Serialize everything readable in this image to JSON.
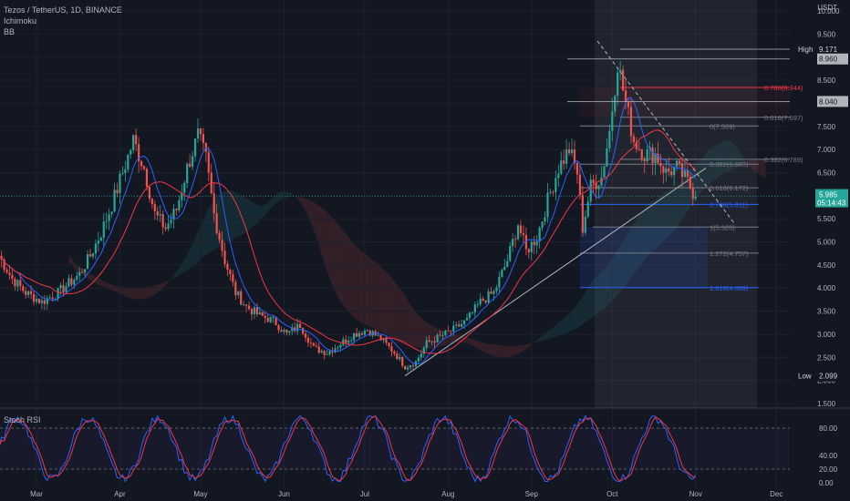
{
  "header": {
    "symbol_line": "Tezos / TetherUS, 1D, BINANCE",
    "indicator_1": "Ichimoku",
    "indicator_2": "BB",
    "rsi_label": "Stoch RSI"
  },
  "colors": {
    "background": "#131722",
    "up": "#26a69a",
    "down": "#ef5350",
    "grid": "#1e222d",
    "fib_blue": "#2962ff",
    "fib_red": "#f23645",
    "bb_blue": "#2962ff",
    "bb_red": "#f23645"
  },
  "chart_data": [
    {
      "type": "candlestick",
      "title": "Tezos / TetherUS, 1D, BINANCE",
      "unit": "USDT",
      "ylim": [
        1.5,
        10.0
      ],
      "y_ticks": [
        "1.500",
        "2.000",
        "2.500",
        "3.000",
        "3.500",
        "4.000",
        "4.500",
        "5.000",
        "5.500",
        "6.000",
        "6.500",
        "7.000",
        "7.500",
        "8.000",
        "8.500",
        "9.000",
        "9.500",
        "10.000"
      ],
      "x_ticks": [
        {
          "label": "Mar",
          "day": 0
        },
        {
          "label": "Apr",
          "day": 31
        },
        {
          "label": "May",
          "day": 61
        },
        {
          "label": "Jun",
          "day": 92
        },
        {
          "label": "Jul",
          "day": 122
        },
        {
          "label": "Aug",
          "day": 153
        },
        {
          "label": "Sep",
          "day": 184
        },
        {
          "label": "Oct",
          "day": 214
        },
        {
          "label": "Nov",
          "day": 245
        },
        {
          "label": "Dec",
          "day": 275
        }
      ],
      "current_price": {
        "value": 5.985,
        "label": "5.985",
        "countdown": "05:14:43"
      },
      "high": {
        "label": "High",
        "value": 9.171,
        "text": "9.171"
      },
      "low": {
        "label": "Low",
        "value": 2.099,
        "text": "2.099"
      },
      "price_badges": [
        {
          "value": 8.96,
          "text": "8.960"
        },
        {
          "value": 8.04,
          "text": "8.040"
        }
      ],
      "key_points": [
        {
          "day": -14,
          "price": 4.7
        },
        {
          "day": -9,
          "price": 4.2
        },
        {
          "day": -4,
          "price": 3.9
        },
        {
          "day": 2,
          "price": 3.7
        },
        {
          "day": 8,
          "price": 3.9
        },
        {
          "day": 12,
          "price": 4.1
        },
        {
          "day": 16,
          "price": 4.3
        },
        {
          "day": 20,
          "price": 4.7
        },
        {
          "day": 24,
          "price": 5.2
        },
        {
          "day": 28,
          "price": 5.8
        },
        {
          "day": 32,
          "price": 6.5
        },
        {
          "day": 36,
          "price": 7.2
        },
        {
          "day": 40,
          "price": 6.6
        },
        {
          "day": 44,
          "price": 5.6
        },
        {
          "day": 48,
          "price": 5.3
        },
        {
          "day": 52,
          "price": 5.7
        },
        {
          "day": 56,
          "price": 6.6
        },
        {
          "day": 60,
          "price": 7.3
        },
        {
          "day": 63,
          "price": 6.8
        },
        {
          "day": 66,
          "price": 5.6
        },
        {
          "day": 70,
          "price": 4.6
        },
        {
          "day": 74,
          "price": 3.9
        },
        {
          "day": 78,
          "price": 3.6
        },
        {
          "day": 83,
          "price": 3.4
        },
        {
          "day": 88,
          "price": 3.3
        },
        {
          "day": 93,
          "price": 3.0
        },
        {
          "day": 98,
          "price": 3.2
        },
        {
          "day": 103,
          "price": 2.7
        },
        {
          "day": 108,
          "price": 2.6
        },
        {
          "day": 113,
          "price": 2.8
        },
        {
          "day": 118,
          "price": 3.0
        },
        {
          "day": 123,
          "price": 3.1
        },
        {
          "day": 128,
          "price": 2.9
        },
        {
          "day": 133,
          "price": 2.6
        },
        {
          "day": 137,
          "price": 2.3
        },
        {
          "day": 141,
          "price": 2.4
        },
        {
          "day": 145,
          "price": 2.8
        },
        {
          "day": 150,
          "price": 2.95
        },
        {
          "day": 155,
          "price": 3.1
        },
        {
          "day": 160,
          "price": 3.3
        },
        {
          "day": 165,
          "price": 3.7
        },
        {
          "day": 170,
          "price": 3.9
        },
        {
          "day": 175,
          "price": 4.6
        },
        {
          "day": 179,
          "price": 5.4
        },
        {
          "day": 182,
          "price": 4.8
        },
        {
          "day": 186,
          "price": 5.1
        },
        {
          "day": 190,
          "price": 5.9
        },
        {
          "day": 194,
          "price": 6.6
        },
        {
          "day": 198,
          "price": 7.0
        },
        {
          "day": 201,
          "price": 6.5
        },
        {
          "day": 203,
          "price": 5.3
        },
        {
          "day": 206,
          "price": 6.2
        },
        {
          "day": 210,
          "price": 6.4
        },
        {
          "day": 213,
          "price": 7.4
        },
        {
          "day": 216,
          "price": 8.9
        },
        {
          "day": 219,
          "price": 8.0
        },
        {
          "day": 222,
          "price": 7.2
        },
        {
          "day": 226,
          "price": 6.9
        },
        {
          "day": 230,
          "price": 6.9
        },
        {
          "day": 234,
          "price": 6.5
        },
        {
          "day": 238,
          "price": 6.6
        },
        {
          "day": 242,
          "price": 6.3
        },
        {
          "day": 245,
          "price": 5.985
        }
      ],
      "fibonacci": [
        {
          "label": "0(7.509)",
          "value": 7.509,
          "color": "#787b86"
        },
        {
          "label": "0.382(6.683)",
          "value": 6.683,
          "color": "#787b86"
        },
        {
          "label": "0.618(6.172)",
          "value": 6.172,
          "color": "#787b86"
        },
        {
          "label": "0.786(5.811)",
          "value": 5.811,
          "color": "#2962ff"
        },
        {
          "label": "1(5.320)",
          "value": 5.32,
          "color": "#787b86"
        },
        {
          "label": "1.272(4.757)",
          "value": 4.757,
          "color": "#787b86"
        },
        {
          "label": "1.618(4.009)",
          "value": 4.009,
          "color": "#2962ff"
        },
        {
          "label": "0.786(8.344)",
          "value": 8.344,
          "color": "#f23645"
        },
        {
          "label": "0.618(7.697)",
          "value": 7.697,
          "color": "#787b86"
        },
        {
          "label": "0.382(6.789)",
          "value": 6.789,
          "color": "#787b86"
        }
      ],
      "trendline": {
        "from": {
          "day": 137,
          "price": 2.1
        },
        "to": {
          "day": 242,
          "price": 6.4
        }
      }
    },
    {
      "type": "line",
      "title": "Stoch RSI",
      "ylim": [
        0,
        100
      ],
      "y_ticks": [
        "0.00",
        "20.00",
        "40.00",
        "80.00"
      ],
      "levels": [
        20,
        80
      ]
    }
  ]
}
